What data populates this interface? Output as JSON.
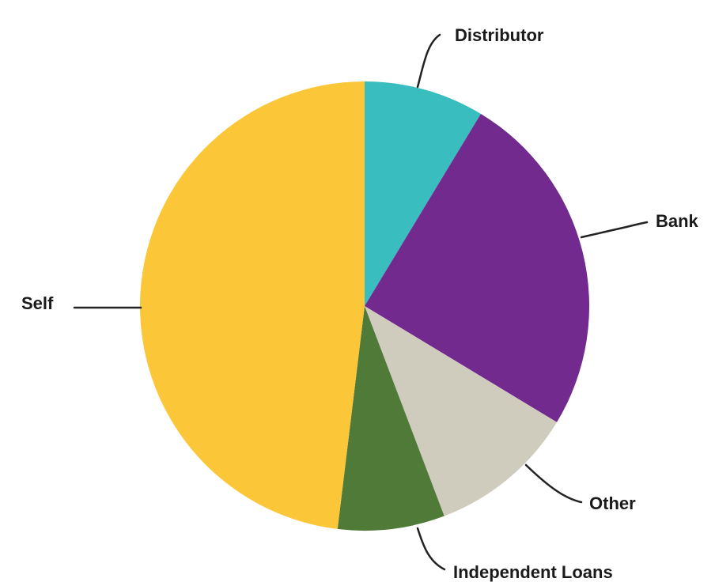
{
  "chart_data": {
    "type": "pie",
    "title": "",
    "start_angle_deg": 0,
    "direction": "clockwise",
    "slices": [
      {
        "label": "Distributor",
        "value": 9,
        "color": "#39BDBF"
      },
      {
        "label": "Bank",
        "value": 26,
        "color": "#722A8E"
      },
      {
        "label": "Other",
        "value": 11,
        "color": "#CFCCBE"
      },
      {
        "label": "Independent Loans",
        "value": 8,
        "color": "#507A38"
      },
      {
        "label": "Self",
        "value": 50,
        "color": "#FBC638"
      }
    ]
  }
}
